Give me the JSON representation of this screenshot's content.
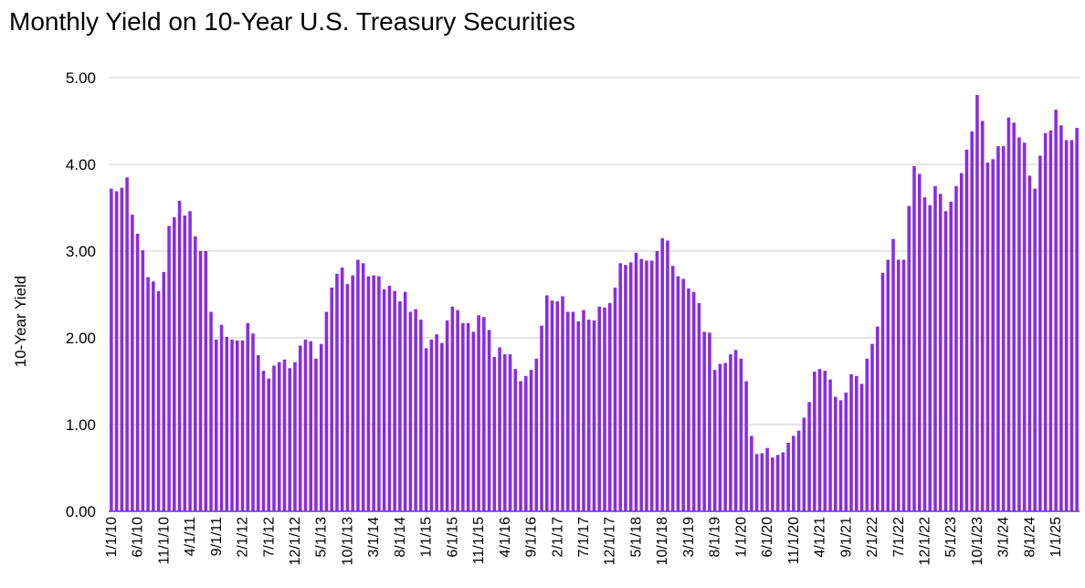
{
  "chart_data": {
    "type": "bar",
    "title": "Monthly Yield on 10-Year U.S. Treasury Securities",
    "xlabel": "",
    "ylabel": "10-Year Yield",
    "ylim": [
      0,
      5
    ],
    "yticks": [
      "0.00",
      "1.00",
      "2.00",
      "3.00",
      "4.00",
      "5.00"
    ],
    "grid": true,
    "legend": "none",
    "color": "#8a2be2",
    "tick_labels": [
      "1/1/10",
      "6/1/10",
      "11/1/10",
      "4/1/11",
      "9/1/11",
      "2/1/12",
      "7/1/12",
      "12/1/12",
      "5/1/13",
      "10/1/13",
      "3/1/14",
      "8/1/14",
      "1/1/15",
      "6/1/15",
      "11/1/15",
      "4/1/16",
      "9/1/16",
      "2/1/17",
      "7/1/17",
      "12/1/17",
      "5/1/18",
      "10/1/18",
      "3/1/19",
      "8/1/19",
      "1/1/20",
      "6/1/20",
      "11/1/20",
      "4/1/21",
      "9/1/21",
      "2/1/22",
      "7/1/22",
      "12/1/22",
      "5/1/23",
      "10/1/23",
      "3/1/24",
      "8/1/24",
      "1/1/25"
    ],
    "tick_every": 5,
    "values": [
      3.72,
      3.69,
      3.73,
      3.85,
      3.42,
      3.2,
      3.01,
      2.7,
      2.65,
      2.54,
      2.76,
      3.29,
      3.39,
      3.58,
      3.41,
      3.46,
      3.17,
      3.0,
      3.0,
      2.3,
      1.98,
      2.15,
      2.01,
      1.98,
      1.97,
      1.97,
      2.17,
      2.05,
      1.8,
      1.62,
      1.53,
      1.68,
      1.72,
      1.75,
      1.65,
      1.72,
      1.91,
      1.98,
      1.96,
      1.76,
      1.93,
      2.3,
      2.58,
      2.74,
      2.81,
      2.62,
      2.72,
      2.9,
      2.86,
      2.71,
      2.72,
      2.71,
      2.56,
      2.6,
      2.54,
      2.42,
      2.53,
      2.3,
      2.33,
      2.21,
      1.88,
      1.98,
      2.04,
      1.94,
      2.2,
      2.36,
      2.32,
      2.17,
      2.17,
      2.07,
      2.26,
      2.24,
      2.09,
      1.78,
      1.89,
      1.81,
      1.81,
      1.64,
      1.5,
      1.56,
      1.63,
      1.76,
      2.14,
      2.49,
      2.43,
      2.42,
      2.48,
      2.3,
      2.3,
      2.19,
      2.32,
      2.21,
      2.2,
      2.36,
      2.35,
      2.4,
      2.58,
      2.86,
      2.84,
      2.87,
      2.98,
      2.91,
      2.89,
      2.89,
      3.0,
      3.15,
      3.12,
      2.83,
      2.71,
      2.68,
      2.57,
      2.53,
      2.4,
      2.07,
      2.06,
      1.63,
      1.7,
      1.71,
      1.81,
      1.86,
      1.76,
      1.5,
      0.87,
      0.66,
      0.67,
      0.73,
      0.62,
      0.65,
      0.68,
      0.79,
      0.87,
      0.93,
      1.08,
      1.26,
      1.61,
      1.64,
      1.62,
      1.52,
      1.32,
      1.28,
      1.37,
      1.58,
      1.56,
      1.47,
      1.76,
      1.93,
      2.13,
      2.75,
      2.9,
      3.14,
      2.9,
      2.9,
      3.52,
      3.98,
      3.89,
      3.62,
      3.53,
      3.75,
      3.66,
      3.46,
      3.57,
      3.75,
      3.9,
      4.17,
      4.38,
      4.8,
      4.5,
      4.02,
      4.06,
      4.21,
      4.21,
      4.54,
      4.48,
      4.31,
      4.25,
      3.87,
      3.72,
      4.1,
      4.36,
      4.39,
      4.63,
      4.45,
      4.28,
      4.28,
      4.42
    ]
  }
}
